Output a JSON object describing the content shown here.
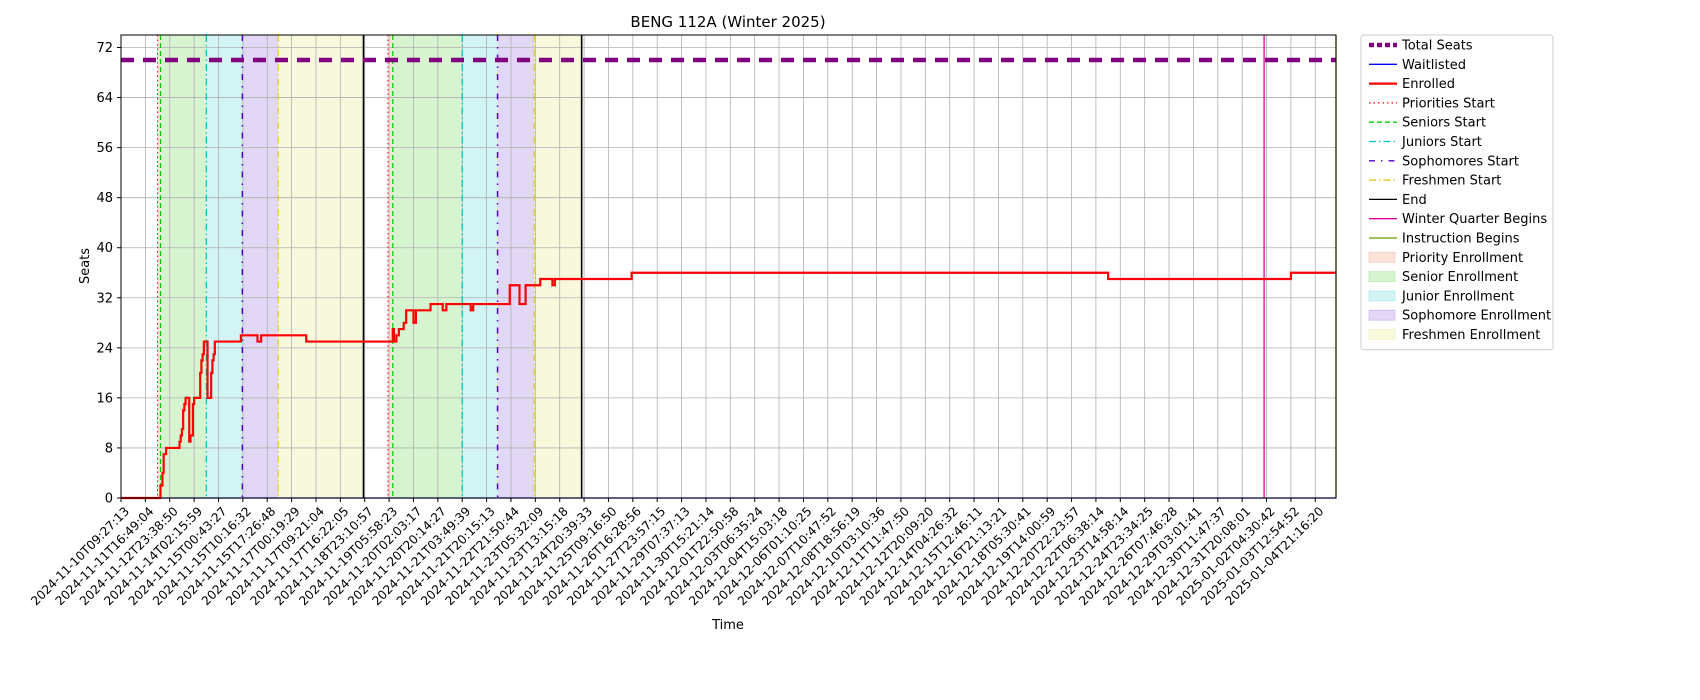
{
  "chart_data": {
    "type": "line",
    "title": "BENG 112A (Winter 2025)",
    "xlabel": "Time",
    "ylabel": "Seats",
    "ylim": [
      0,
      74
    ],
    "yticks": [
      0,
      8,
      16,
      24,
      32,
      40,
      48,
      56,
      64,
      72
    ],
    "grid": true,
    "legend_position": "outside right",
    "x_categories": [
      "2024-11-10T09:27:13",
      "2024-11-11T16:49:04",
      "2024-11-12T23:38:50",
      "2024-11-14T02:15:59",
      "2024-11-15T00:43:27",
      "2024-11-15T10:16:32",
      "2024-11-15T17:26:48",
      "2024-11-17T00:19:29",
      "2024-11-17T09:21:04",
      "2024-11-17T16:22:05",
      "2024-11-18T23:10:57",
      "2024-11-19T05:58:23",
      "2024-11-20T02:03:17",
      "2024-11-20T20:14:27",
      "2024-11-21T03:49:39",
      "2024-11-21T20:15:13",
      "2024-11-22T21:50:44",
      "2024-11-23T05:32:09",
      "2024-11-23T13:15:18",
      "2024-11-24T20:39:33",
      "2024-11-25T09:16:50",
      "2024-11-26T16:28:56",
      "2024-11-27T23:57:15",
      "2024-11-29T07:37:13",
      "2024-11-30T15:21:14",
      "2024-12-01T22:50:58",
      "2024-12-03T06:35:24",
      "2024-12-04T15:03:18",
      "2024-12-06T01:10:25",
      "2024-12-07T10:47:52",
      "2024-12-08T18:56:19",
      "2024-12-10T03:10:36",
      "2024-12-11T11:47:50",
      "2024-12-12T20:09:20",
      "2024-12-14T04:26:32",
      "2024-12-15T12:46:11",
      "2024-12-16T21:13:21",
      "2024-12-18T05:30:41",
      "2024-12-19T14:00:59",
      "2024-12-20T22:23:57",
      "2024-12-22T06:38:14",
      "2024-12-23T14:58:14",
      "2024-12-24T23:34:25",
      "2024-12-26T07:46:28",
      "2024-12-29T03:01:41",
      "2024-12-30T11:47:37",
      "2024-12-31T20:08:01",
      "2025-01-02T04:30:42",
      "2025-01-03T12:54:52",
      "2025-01-04T21:16:20"
    ],
    "x_range": [
      0,
      49.85
    ],
    "series": [
      {
        "name": "Total Seats",
        "color": "#800080",
        "style": "dashed",
        "points": [
          [
            0,
            70
          ],
          [
            49.85,
            70
          ]
        ]
      },
      {
        "name": "Waitlisted",
        "color": "#0000ff",
        "style": "solid",
        "points": [
          [
            0,
            0
          ],
          [
            49.85,
            0
          ]
        ]
      },
      {
        "name": "Enrolled",
        "color": "#ff0000",
        "style": "solid",
        "points": [
          [
            0,
            0
          ],
          [
            1.55,
            0
          ],
          [
            1.62,
            2
          ],
          [
            1.7,
            4
          ],
          [
            1.75,
            7
          ],
          [
            1.85,
            8
          ],
          [
            2.35,
            8
          ],
          [
            2.4,
            9
          ],
          [
            2.45,
            10
          ],
          [
            2.5,
            11
          ],
          [
            2.55,
            14
          ],
          [
            2.6,
            15
          ],
          [
            2.65,
            16
          ],
          [
            2.75,
            16
          ],
          [
            2.8,
            9
          ],
          [
            2.85,
            10
          ],
          [
            2.9,
            10
          ],
          [
            2.95,
            15
          ],
          [
            3.0,
            16
          ],
          [
            3.2,
            16
          ],
          [
            3.25,
            20
          ],
          [
            3.3,
            22
          ],
          [
            3.35,
            23
          ],
          [
            3.4,
            25
          ],
          [
            3.5,
            25
          ],
          [
            3.55,
            16
          ],
          [
            3.65,
            16
          ],
          [
            3.7,
            20
          ],
          [
            3.75,
            22
          ],
          [
            3.8,
            23
          ],
          [
            3.85,
            25
          ],
          [
            4.9,
            25
          ],
          [
            4.92,
            26
          ],
          [
            5.55,
            26
          ],
          [
            5.6,
            25
          ],
          [
            5.7,
            25
          ],
          [
            5.75,
            26
          ],
          [
            7.55,
            26
          ],
          [
            7.6,
            25
          ],
          [
            11.1,
            25
          ],
          [
            11.15,
            27
          ],
          [
            11.2,
            25
          ],
          [
            11.3,
            26
          ],
          [
            11.4,
            27
          ],
          [
            11.6,
            28
          ],
          [
            11.7,
            30
          ],
          [
            11.9,
            30
          ],
          [
            12.0,
            28
          ],
          [
            12.1,
            30
          ],
          [
            12.6,
            30
          ],
          [
            12.7,
            31
          ],
          [
            13.1,
            31
          ],
          [
            13.2,
            30
          ],
          [
            13.35,
            31
          ],
          [
            14.3,
            31
          ],
          [
            14.35,
            30
          ],
          [
            14.45,
            31
          ],
          [
            15.85,
            31
          ],
          [
            15.95,
            34
          ],
          [
            16.3,
            34
          ],
          [
            16.35,
            31
          ],
          [
            16.5,
            31
          ],
          [
            16.6,
            34
          ],
          [
            17.15,
            34
          ],
          [
            17.2,
            35
          ],
          [
            17.65,
            35
          ],
          [
            17.7,
            34
          ],
          [
            17.8,
            35
          ],
          [
            20.9,
            35
          ],
          [
            20.95,
            36
          ],
          [
            40.45,
            36
          ],
          [
            40.5,
            35
          ],
          [
            47.95,
            35
          ],
          [
            48.0,
            36
          ],
          [
            49.85,
            36
          ]
        ]
      },
      {
        "name": "Priorities Start",
        "color": "#ff0000",
        "style": "dotted",
        "x": 1.5
      },
      {
        "name": "Seniors Start",
        "color": "#00cc00",
        "style": "dashed",
        "x": 1.62
      },
      {
        "name": "Juniors Start",
        "color": "#00bfbf",
        "style": "dashdot",
        "x": 3.5
      },
      {
        "name": "Sophomores Start",
        "color": "#5000d0",
        "style": "dashdot-loose",
        "x": 4.98
      },
      {
        "name": "Freshmen Start",
        "color": "#e0c000",
        "style": "dashdot",
        "x": 6.45
      },
      {
        "name": "End",
        "color": "#000000",
        "style": "solid",
        "x": 9.95
      },
      {
        "name": "Winter Quarter Begins",
        "color": "#e000a0",
        "style": "solid",
        "x": 46.9
      },
      {
        "name": "Instruction Begins",
        "color": "#6b9e00",
        "style": "solid",
        "x": 49.85
      },
      {
        "name": "Priority Enrollment",
        "color": "#f4b8a0",
        "style": "fill"
      },
      {
        "name": "Senior Enrollment",
        "color": "#9be38b",
        "style": "fill"
      },
      {
        "name": "Junior Enrollment",
        "color": "#8fe3e6",
        "style": "fill"
      },
      {
        "name": "Sophomore Enrollment",
        "color": "#b79ae6",
        "style": "fill"
      },
      {
        "name": "Freshmen Enrollment",
        "color": "#eeeeab",
        "style": "fill"
      }
    ],
    "markers": {
      "priorities": [
        1.5,
        10.95
      ],
      "seniors": [
        1.62,
        11.15
      ],
      "juniors": [
        3.5,
        14.0
      ],
      "sophomores": [
        4.98,
        15.45
      ],
      "freshmen": [
        6.45,
        16.95
      ],
      "end": [
        9.95,
        18.9
      ]
    }
  }
}
